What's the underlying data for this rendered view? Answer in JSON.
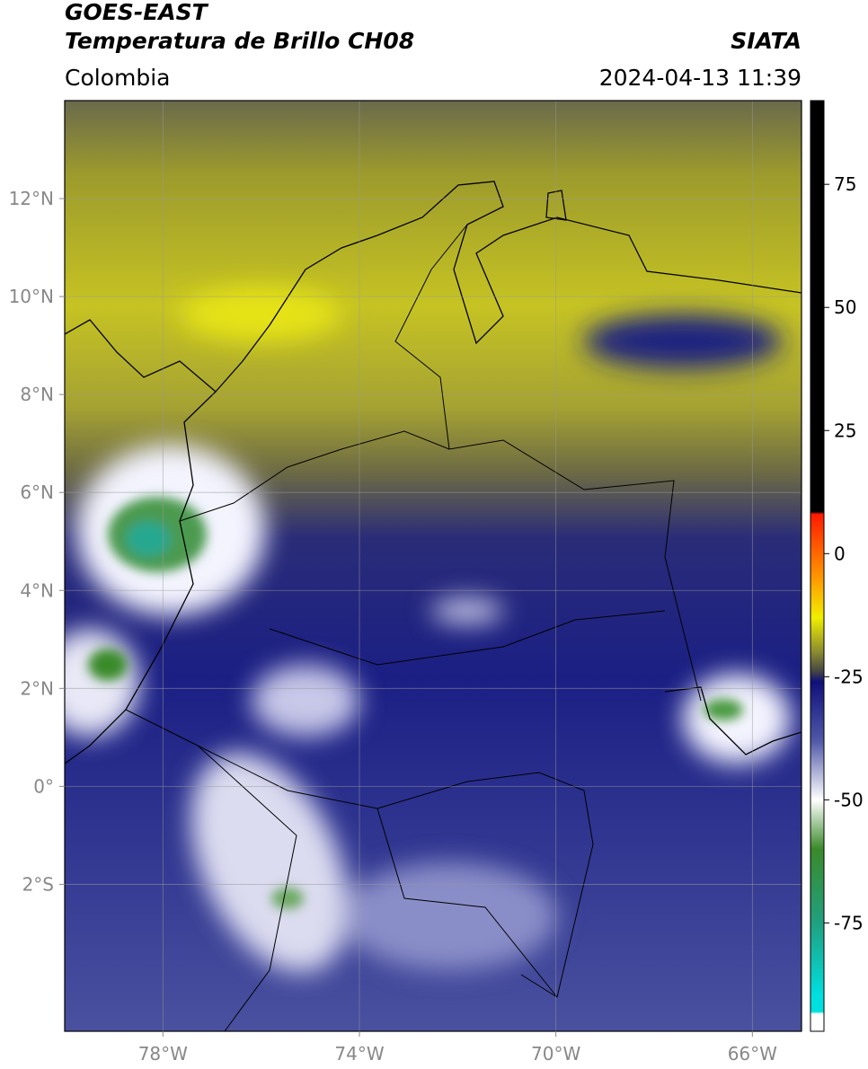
{
  "header": {
    "title": "GOES-EAST",
    "subtitle": "Temperatura de Brillo CH08",
    "source": "SIATA",
    "region": "Colombia",
    "datetime": "2024-04-13 11:39"
  },
  "map": {
    "lonlim": [
      -80,
      -65
    ],
    "latlim": [
      -5,
      14
    ],
    "xticks": [
      {
        "value": -78,
        "label": "78°W"
      },
      {
        "value": -74,
        "label": "74°W"
      },
      {
        "value": -70,
        "label": "70°W"
      },
      {
        "value": -66,
        "label": "66°W"
      }
    ],
    "yticks": [
      {
        "value": 12,
        "label": "12°N"
      },
      {
        "value": 10,
        "label": "10°N"
      },
      {
        "value": 8,
        "label": "8°N"
      },
      {
        "value": 6,
        "label": "6°N"
      },
      {
        "value": 4,
        "label": "4°N"
      },
      {
        "value": 2,
        "label": "2°N"
      },
      {
        "value": 0,
        "label": "0°"
      },
      {
        "value": -2,
        "label": "2°S"
      }
    ],
    "grid": true
  },
  "colorbar": {
    "lim": [
      -97,
      92
    ],
    "ticks": [
      75,
      50,
      25,
      0,
      -25,
      -50,
      -75
    ],
    "stops": [
      {
        "value": 92,
        "color": "#000000"
      },
      {
        "value": 8.5,
        "color": "#000000"
      },
      {
        "value": 8,
        "color": "#ff1a00"
      },
      {
        "value": -5,
        "color": "#ff9900"
      },
      {
        "value": -13,
        "color": "#f0ee00"
      },
      {
        "value": -20,
        "color": "#8a8a30"
      },
      {
        "value": -24,
        "color": "#444444"
      },
      {
        "value": -26,
        "color": "#10107a"
      },
      {
        "value": -38,
        "color": "#5058a8"
      },
      {
        "value": -50,
        "color": "#ffffff"
      },
      {
        "value": -60,
        "color": "#3a8a2a"
      },
      {
        "value": -75,
        "color": "#20a080"
      },
      {
        "value": -90,
        "color": "#00e0e0"
      },
      {
        "value": -93,
        "color": "#00e0e0"
      },
      {
        "value": -93.5,
        "color": "#ffffff"
      },
      {
        "value": -97,
        "color": "#ffffff"
      }
    ]
  }
}
